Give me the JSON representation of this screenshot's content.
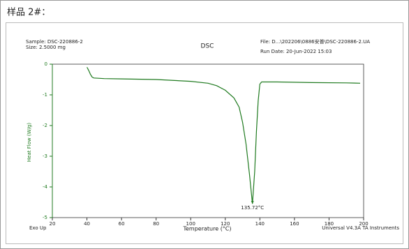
{
  "heading": "样品 2#：",
  "chart_data": {
    "type": "line",
    "title": "DSC",
    "sample": "Sample: DSC-220886-2",
    "size": "Size: 2.5000 mg",
    "file": "File: D...\\202206\\0886安普\\DSC-220886-2.UA",
    "run_date": "Run Date: 20-Jun-2022 15:03",
    "x_label": "Temperature (°C)",
    "y_label": "Heat Flow (W/g)",
    "exo": "Exo Up",
    "instrument": "Universal V4.3A TA Instruments",
    "peak": {
      "x": 135.72,
      "y": -4.55,
      "label": "135.72°C"
    },
    "color": "#1f7a1f",
    "x": [
      40,
      41,
      42,
      43,
      44,
      50,
      60,
      80,
      100,
      110,
      115,
      120,
      125,
      128,
      130,
      132,
      134,
      135.72,
      137,
      138,
      139,
      140,
      141,
      150,
      170,
      190,
      198
    ],
    "values": [
      -0.1,
      -0.2,
      -0.33,
      -0.42,
      -0.45,
      -0.47,
      -0.48,
      -0.5,
      -0.56,
      -0.62,
      -0.7,
      -0.85,
      -1.1,
      -1.4,
      -1.9,
      -2.6,
      -3.6,
      -4.55,
      -3.5,
      -2.2,
      -1.2,
      -0.65,
      -0.58,
      -0.58,
      -0.6,
      -0.61,
      -0.62
    ],
    "xlim": [
      20,
      200
    ],
    "xticks": [
      20,
      40,
      60,
      80,
      100,
      120,
      140,
      160,
      180,
      200
    ],
    "ylim": [
      -5,
      0
    ],
    "yticks": [
      0,
      -1,
      -2,
      -3,
      -4,
      -5
    ]
  }
}
